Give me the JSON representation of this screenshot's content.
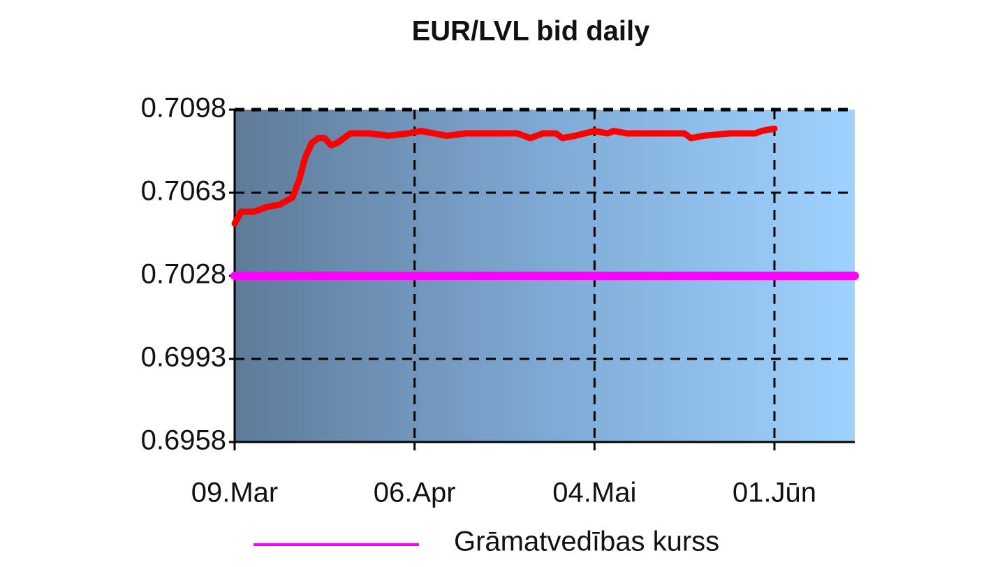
{
  "chart_data": {
    "type": "line",
    "title": "EUR/LVL bid daily",
    "xlim": [
      0,
      96.5
    ],
    "xticks": [
      {
        "value": 0,
        "label": "09.Mar"
      },
      {
        "value": 28,
        "label": "06.Apr"
      },
      {
        "value": 56,
        "label": "04.Mai"
      },
      {
        "value": 84,
        "label": "01.Jūn"
      }
    ],
    "ylim": [
      0.6958,
      0.7098
    ],
    "yticks": [
      0.6958,
      0.6993,
      0.7028,
      0.7063,
      0.7098
    ],
    "grid": true,
    "legend": "bottom",
    "series": [
      {
        "color": "#ff0000",
        "x": [
          0,
          1,
          3,
          5,
          7,
          9,
          10,
          11,
          12,
          13,
          14,
          15,
          16,
          18,
          21,
          24,
          27,
          29,
          31,
          33,
          36,
          40,
          44,
          46,
          48,
          50,
          51,
          53,
          56,
          58,
          59,
          61,
          65,
          70,
          71,
          73,
          77,
          81,
          82,
          84
        ],
        "values": [
          0.705,
          0.7055,
          0.7055,
          0.7057,
          0.7058,
          0.7061,
          0.7068,
          0.7078,
          0.7084,
          0.7086,
          0.7086,
          0.7083,
          0.7084,
          0.7088,
          0.7088,
          0.7087,
          0.7088,
          0.7089,
          0.7088,
          0.7087,
          0.7088,
          0.7088,
          0.7088,
          0.7086,
          0.7088,
          0.7088,
          0.7086,
          0.7087,
          0.7089,
          0.7088,
          0.7089,
          0.7088,
          0.7088,
          0.7088,
          0.7086,
          0.7087,
          0.7088,
          0.7088,
          0.7089,
          0.709
        ]
      },
      {
        "name": "Grāmatvedības kurss",
        "color": "#ff00ff",
        "x": [
          0,
          96.5
        ],
        "values": [
          0.7028,
          0.7028
        ]
      }
    ]
  }
}
